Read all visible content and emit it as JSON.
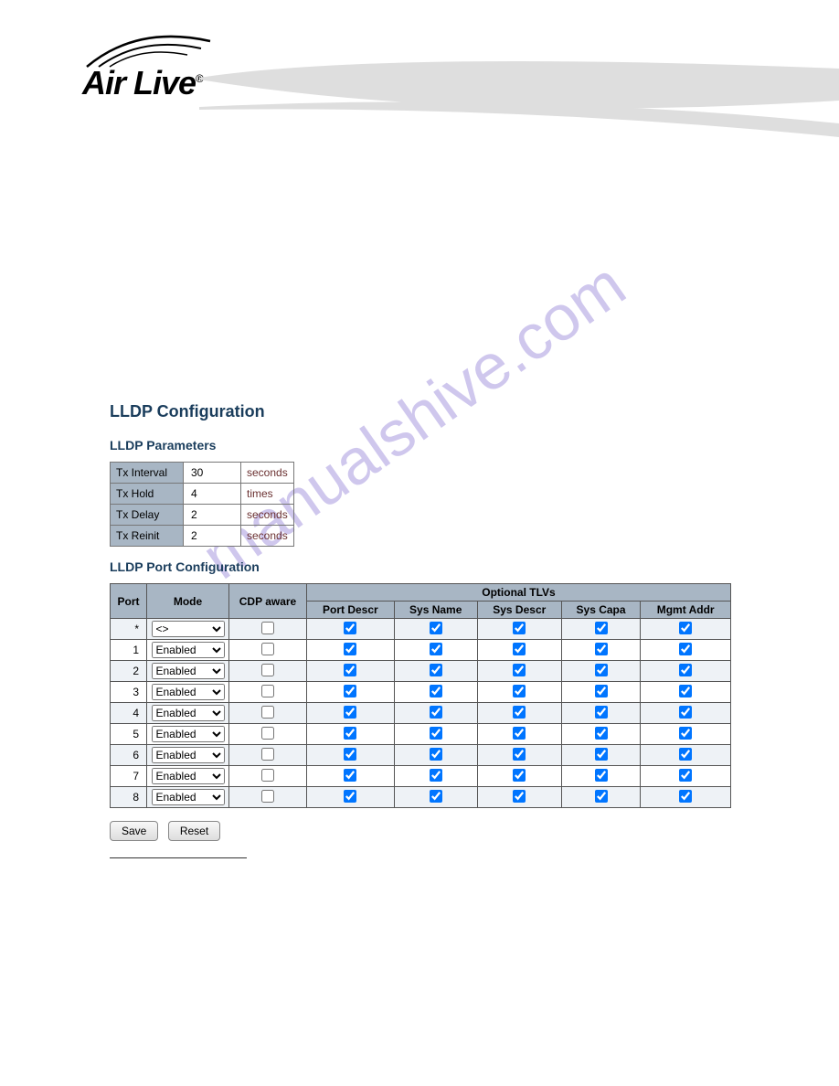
{
  "logo": {
    "text": "Air Live",
    "reg": "®"
  },
  "watermark": "manualshive.com",
  "page_title": "LLDP Configuration",
  "parameters_section": {
    "title": "LLDP Parameters",
    "rows": [
      {
        "label": "Tx Interval",
        "value": "30",
        "unit": "seconds"
      },
      {
        "label": "Tx Hold",
        "value": "4",
        "unit": "times"
      },
      {
        "label": "Tx Delay",
        "value": "2",
        "unit": "seconds"
      },
      {
        "label": "Tx Reinit",
        "value": "2",
        "unit": "seconds"
      }
    ]
  },
  "port_section": {
    "title": "LLDP Port Configuration",
    "header_group": "Optional TLVs",
    "columns": {
      "port": "Port",
      "mode": "Mode",
      "cdp": "CDP aware",
      "portdescr": "Port Descr",
      "sysname": "Sys Name",
      "sysdescr": "Sys Descr",
      "syscapa": "Sys Capa",
      "mgmtaddr": "Mgmt Addr"
    },
    "rows": [
      {
        "port": "*",
        "mode": "<>",
        "cdp": false,
        "pd": true,
        "sn": true,
        "sd": true,
        "sc": true,
        "ma": true
      },
      {
        "port": "1",
        "mode": "Enabled",
        "cdp": false,
        "pd": true,
        "sn": true,
        "sd": true,
        "sc": true,
        "ma": true
      },
      {
        "port": "2",
        "mode": "Enabled",
        "cdp": false,
        "pd": true,
        "sn": true,
        "sd": true,
        "sc": true,
        "ma": true
      },
      {
        "port": "3",
        "mode": "Enabled",
        "cdp": false,
        "pd": true,
        "sn": true,
        "sd": true,
        "sc": true,
        "ma": true
      },
      {
        "port": "4",
        "mode": "Enabled",
        "cdp": false,
        "pd": true,
        "sn": true,
        "sd": true,
        "sc": true,
        "ma": true
      },
      {
        "port": "5",
        "mode": "Enabled",
        "cdp": false,
        "pd": true,
        "sn": true,
        "sd": true,
        "sc": true,
        "ma": true
      },
      {
        "port": "6",
        "mode": "Enabled",
        "cdp": false,
        "pd": true,
        "sn": true,
        "sd": true,
        "sc": true,
        "ma": true
      },
      {
        "port": "7",
        "mode": "Enabled",
        "cdp": false,
        "pd": true,
        "sn": true,
        "sd": true,
        "sc": true,
        "ma": true
      },
      {
        "port": "8",
        "mode": "Enabled",
        "cdp": false,
        "pd": true,
        "sn": true,
        "sd": true,
        "sc": true,
        "ma": true
      }
    ]
  },
  "buttons": {
    "save": "Save",
    "reset": "Reset"
  },
  "colors": {
    "header_bg": "#a8b6c4",
    "title_color": "#1a3d5c",
    "odd_row": "#eef2f6",
    "watermark_color": "#a89ae0",
    "wave_color": "#dedede"
  }
}
